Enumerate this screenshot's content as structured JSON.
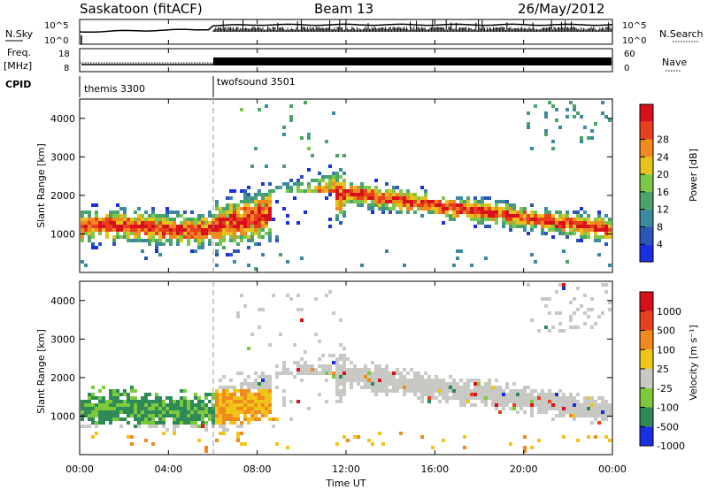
{
  "header": {
    "station": "Saskatoon (fitACF)",
    "beam": "Beam 13",
    "date": "26/May/2012"
  },
  "noise_panel": {
    "left_label": "N.Sky",
    "left_ticks": [
      "10^5",
      "10^0"
    ],
    "right_ticks": [
      "10^5",
      "10^0"
    ],
    "right_label": "N.Search"
  },
  "freq_panel": {
    "left_label_1": "Freq.",
    "left_label_2": "[MHz]",
    "left_ticks": [
      "18",
      "8"
    ],
    "right_ticks": [
      "60",
      "0"
    ],
    "right_label": "Nave"
  },
  "cpid": {
    "label": "CPID",
    "modes": [
      {
        "name": "themis 3300",
        "start_hour": 0
      },
      {
        "name": "twofsound 3501",
        "start_hour": 6
      }
    ]
  },
  "chart_data": [
    {
      "type": "heatmap",
      "quantity": "Power",
      "ylabel": "Slant Range [km]",
      "xlim": [
        0,
        24
      ],
      "ylim": [
        0,
        4500
      ],
      "yticks": [
        "1000",
        "2000",
        "3000",
        "4000"
      ],
      "colorbar": {
        "label": "Power [dB]",
        "ticks": [
          "4",
          "8",
          "12",
          "16",
          "20",
          "24",
          "28"
        ],
        "colors": [
          "#1a2fe0",
          "#2b55b8",
          "#3d8aa0",
          "#4aa36b",
          "#7cc84a",
          "#e8c21c",
          "#f08a1c",
          "#e8401c",
          "#d8101c"
        ]
      }
    },
    {
      "type": "heatmap",
      "quantity": "Velocity",
      "ylabel": "Slant Range [km]",
      "xlim": [
        0,
        24
      ],
      "ylim": [
        0,
        4500
      ],
      "yticks": [
        "1000",
        "2000",
        "3000",
        "4000"
      ],
      "colorbar": {
        "label": "Velocity [m s⁻¹]",
        "ticks": [
          "1000",
          "500",
          "100",
          "25",
          "-25",
          "-100",
          "-500",
          "-1000"
        ],
        "colors": [
          "#1a2fe0",
          "#2e8b57",
          "#7ec83c",
          "#c8c8c4",
          "#f0c419",
          "#f08a1c",
          "#e8401c",
          "#d8101c"
        ]
      }
    }
  ],
  "xaxis": {
    "label": "Time UT",
    "ticks": [
      "00:00",
      "04:00",
      "08:00",
      "12:00",
      "16:00",
      "20:00",
      "00:00"
    ]
  }
}
